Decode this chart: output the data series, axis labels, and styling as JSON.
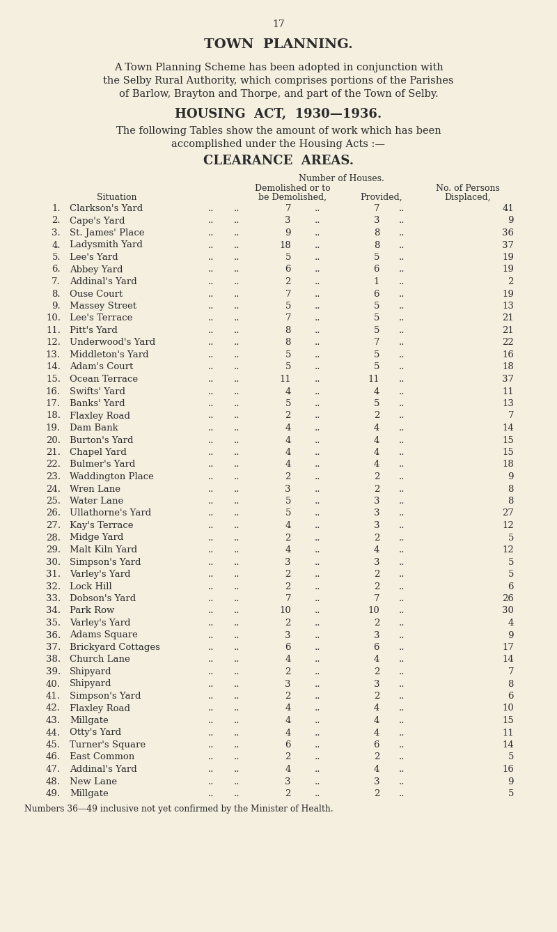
{
  "page_number": "17",
  "bg_color": "#f5efe0",
  "text_color": "#2a2a2a",
  "title1": "TOWN  PLANNING.",
  "para1_lines": [
    "A Town Planning Scheme has been adopted in conjunction with",
    "the Selby Rural Authority, which comprises portions of the Parishes",
    "of Barlow, Brayton and Thorpe, and part of the Town of Selby."
  ],
  "title2": "HOUSING  ACT,  1930—1936.",
  "para2_lines": [
    "The following Tables show the amount of work which has been",
    "accomplished under the Housing Acts :—"
  ],
  "title3": "CLEARANCE  AREAS.",
  "rows": [
    [
      1,
      "Clarkson's Yard",
      7,
      7,
      41
    ],
    [
      2,
      "Cape's Yard",
      3,
      3,
      9
    ],
    [
      3,
      "St. James' Place",
      9,
      8,
      36
    ],
    [
      4,
      "Ladysmith Yard",
      18,
      8,
      37
    ],
    [
      5,
      "Lee's Yard",
      5,
      5,
      19
    ],
    [
      6,
      "Abbey Yard",
      6,
      6,
      19
    ],
    [
      7,
      "Addinal's Yard",
      2,
      1,
      2
    ],
    [
      8,
      "Ouse Court",
      7,
      6,
      19
    ],
    [
      9,
      "Massey Street",
      5,
      5,
      13
    ],
    [
      10,
      "Lee's Terrace",
      7,
      5,
      21
    ],
    [
      11,
      "Pitt's Yard",
      8,
      5,
      21
    ],
    [
      12,
      "Underwood's Yard",
      8,
      7,
      22
    ],
    [
      13,
      "Middleton's Yard",
      5,
      5,
      16
    ],
    [
      14,
      "Adam's Court",
      5,
      5,
      18
    ],
    [
      15,
      "Ocean Terrace",
      11,
      11,
      37
    ],
    [
      16,
      "Swifts' Yard",
      4,
      4,
      11
    ],
    [
      17,
      "Banks' Yard",
      5,
      5,
      13
    ],
    [
      18,
      "Flaxley Road",
      2,
      2,
      7
    ],
    [
      19,
      "Dam Bank",
      4,
      4,
      14
    ],
    [
      20,
      "Burton's Yard",
      4,
      4,
      15
    ],
    [
      21,
      "Chapel Yard",
      4,
      4,
      15
    ],
    [
      22,
      "Bulmer's Yard",
      4,
      4,
      18
    ],
    [
      23,
      "Waddington Place",
      2,
      2,
      9
    ],
    [
      24,
      "Wren Lane",
      3,
      2,
      8
    ],
    [
      25,
      "Water Lane",
      5,
      3,
      8
    ],
    [
      26,
      "Ullathorne's Yard",
      5,
      3,
      27
    ],
    [
      27,
      "Kay's Terrace",
      4,
      3,
      12
    ],
    [
      28,
      "Midge Yard",
      2,
      2,
      5
    ],
    [
      29,
      "Malt Kiln Yard",
      4,
      4,
      12
    ],
    [
      30,
      "Simpson's Yard",
      3,
      3,
      5
    ],
    [
      31,
      "Varley's Yard",
      2,
      2,
      5
    ],
    [
      32,
      "Lock Hill",
      2,
      2,
      6
    ],
    [
      33,
      "Dobson's Yard",
      7,
      7,
      26
    ],
    [
      34,
      "Park Row",
      10,
      10,
      30
    ],
    [
      35,
      "Varley's Yard",
      2,
      2,
      4
    ],
    [
      36,
      "Adams Square",
      3,
      3,
      9
    ],
    [
      37,
      "Brickyard Cottages",
      6,
      6,
      17
    ],
    [
      38,
      "Church Lane",
      4,
      4,
      14
    ],
    [
      39,
      "Shipyard",
      2,
      2,
      7
    ],
    [
      40,
      "Shipyard",
      3,
      3,
      8
    ],
    [
      41,
      "Simpson's Yard",
      2,
      2,
      6
    ],
    [
      42,
      "Flaxley Road",
      4,
      4,
      10
    ],
    [
      43,
      "Millgate",
      4,
      4,
      15
    ],
    [
      44,
      "Otty's Yard",
      4,
      4,
      11
    ],
    [
      45,
      "Turner's Square",
      6,
      6,
      14
    ],
    [
      46,
      "East Common",
      2,
      2,
      5
    ],
    [
      47,
      "Addinal's Yard",
      4,
      4,
      16
    ],
    [
      48,
      "New Lane",
      3,
      3,
      9
    ],
    [
      49,
      "Millgate",
      2,
      2,
      5
    ]
  ],
  "footnote": "Numbers 36—49 inclusive not yet confirmed by the Minister of Health."
}
